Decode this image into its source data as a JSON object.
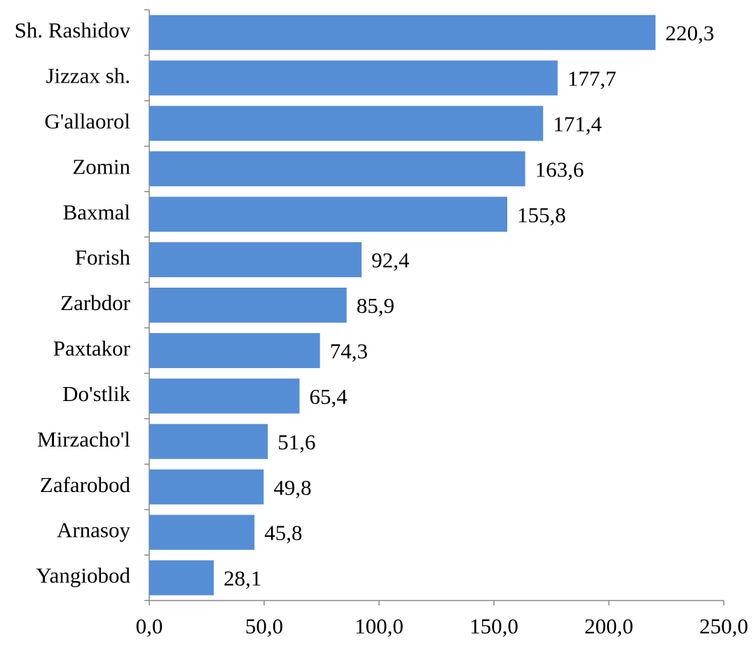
{
  "chart_data": {
    "type": "bar",
    "orientation": "horizontal",
    "categories": [
      "Sh. Rashidov",
      "Jizzax sh.",
      "G'allaorol",
      "Zomin",
      "Baxmal",
      "Forish",
      "Zarbdor",
      "Paxtakor",
      "Do'stlik",
      "Mirzacho'l",
      "Zafarobod",
      "Arnasoy",
      "Yangiobod"
    ],
    "values": [
      220.3,
      177.7,
      171.4,
      163.6,
      155.8,
      92.4,
      85.9,
      74.3,
      65.4,
      51.6,
      49.8,
      45.8,
      28.1
    ],
    "value_labels": [
      "220,3",
      "177,7",
      "171,4",
      "163,6",
      "155,8",
      "92,4",
      "85,9",
      "74,3",
      "65,4",
      "51,6",
      "49,8",
      "45,8",
      "28,1"
    ],
    "color": "#558ed5",
    "xlim": [
      0,
      250
    ],
    "xticks": [
      {
        "value": 0,
        "label": "0,0"
      },
      {
        "value": 50,
        "label": "50,0"
      },
      {
        "value": 100,
        "label": "100,0"
      },
      {
        "value": 150,
        "label": "150,0"
      },
      {
        "value": 200,
        "label": "200,0"
      },
      {
        "value": 250,
        "label": "250,0"
      }
    ],
    "grid": false
  }
}
